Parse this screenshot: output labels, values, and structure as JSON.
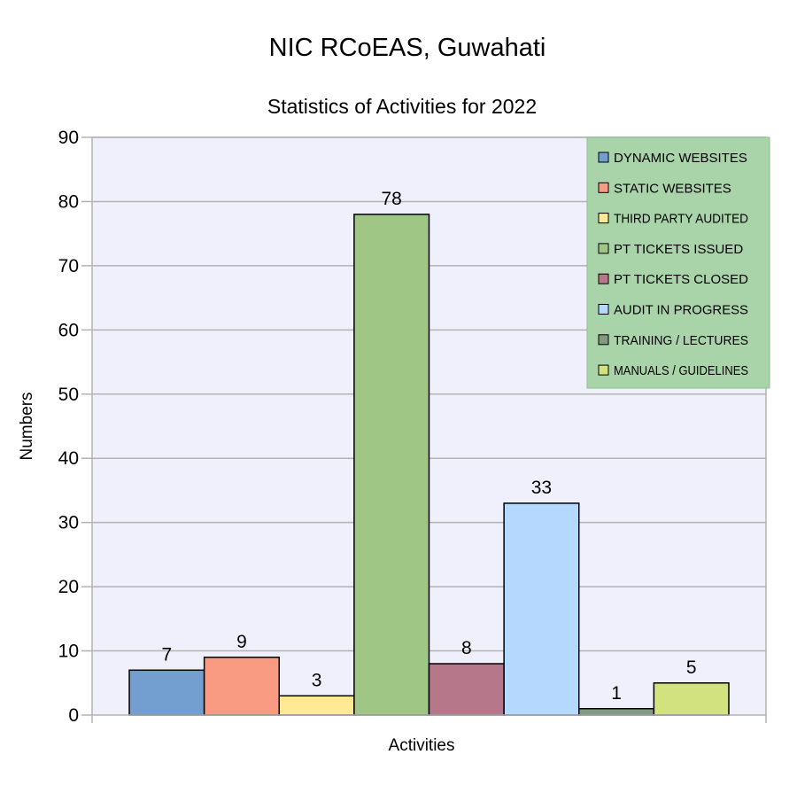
{
  "chart_data": {
    "type": "bar",
    "title": "NIC RCoEAS, Guwahati",
    "subtitle": "Statistics of Activities for 2022",
    "xlabel": "Activities",
    "ylabel": "Numbers",
    "ylim": [
      0,
      90
    ],
    "ytick_step": 10,
    "grid": true,
    "legend_position": "top-right",
    "plot_background": "#f0f0fc",
    "legend_background": "#a9d3a9",
    "series": [
      {
        "name": "DYNAMIC WEBSITES",
        "value": 7,
        "color": "#729fcf"
      },
      {
        "name": "STATIC WEBSITES",
        "value": 9,
        "color": "#f99a83"
      },
      {
        "name": "THIRD PARTY AUDITED",
        "value": 3,
        "color": "#ffe994"
      },
      {
        "name": "PT TICKETS ISSUED",
        "value": 78,
        "color": "#9fc685"
      },
      {
        "name": "PT TICKETS CLOSED",
        "value": 8,
        "color": "#b7778a"
      },
      {
        "name": "AUDIT IN PROGRESS",
        "value": 33,
        "color": "#b4d8fe"
      },
      {
        "name": "TRAINING / LECTURES",
        "value": 1,
        "color": "#849a80"
      },
      {
        "name": "MANUALS / GUIDELINES",
        "value": 5,
        "color": "#d2e27e"
      }
    ]
  }
}
